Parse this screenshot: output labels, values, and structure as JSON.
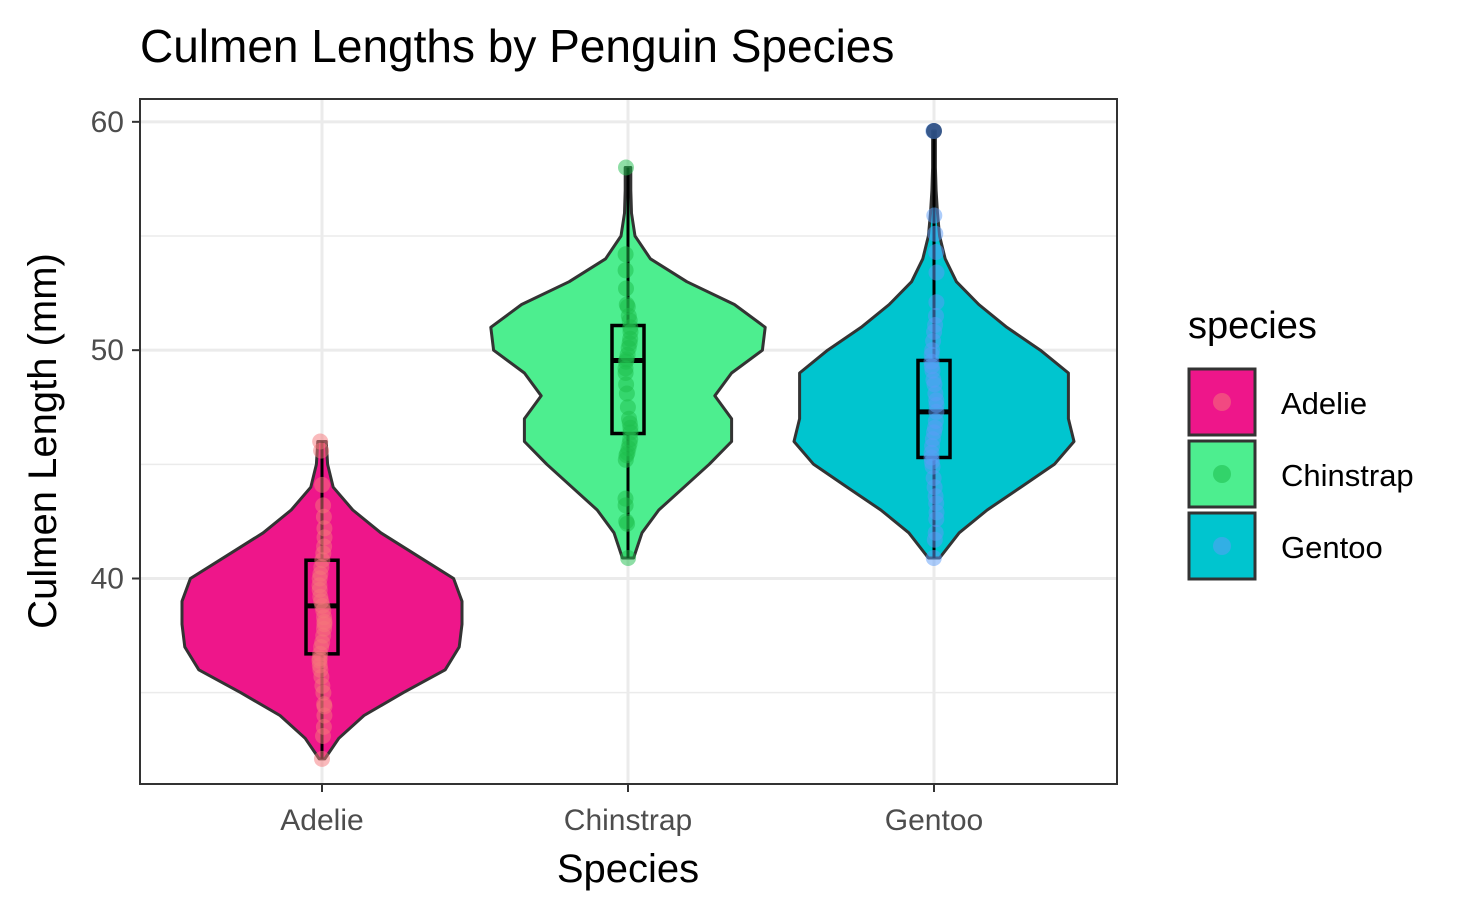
{
  "chart_data": {
    "type": "violin",
    "title": "Culmen Lengths by Penguin Species",
    "xlabel": "Species",
    "ylabel": "Culmen Length (mm)",
    "categories": [
      "Adelie",
      "Chinstrap",
      "Gentoo"
    ],
    "ylim": [
      31,
      61
    ],
    "yticks": [
      40,
      50,
      60
    ],
    "grid": true,
    "legend": {
      "title": "species",
      "position": "right",
      "items": [
        {
          "label": "Adelie",
          "fill": "#EE168A",
          "point": "#F5757A"
        },
        {
          "label": "Chinstrap",
          "fill": "#4DEE8F",
          "point": "#1DBE4C"
        },
        {
          "label": "Gentoo",
          "fill": "#00C5CF",
          "point": "#5B9CF8"
        }
      ]
    },
    "series": [
      {
        "name": "Adelie",
        "fill": "#EE168A",
        "point_color": "#F5757A",
        "min": 32.1,
        "q1": 36.7,
        "median": 38.8,
        "q3": 40.8,
        "max": 46.0,
        "density": [
          [
            32.1,
            0.02
          ],
          [
            33.0,
            0.12
          ],
          [
            34.0,
            0.3
          ],
          [
            35.0,
            0.58
          ],
          [
            36.0,
            0.88
          ],
          [
            37.0,
            0.98
          ],
          [
            38.0,
            1.0
          ],
          [
            39.0,
            1.0
          ],
          [
            40.0,
            0.94
          ],
          [
            41.0,
            0.68
          ],
          [
            42.0,
            0.42
          ],
          [
            43.0,
            0.22
          ],
          [
            44.0,
            0.08
          ],
          [
            45.0,
            0.04
          ],
          [
            46.0,
            0.03
          ]
        ],
        "points": [
          32.1,
          33.1,
          33.5,
          34.0,
          34.4,
          34.5,
          35.0,
          35.3,
          35.7,
          36.0,
          36.2,
          36.4,
          36.5,
          36.7,
          37.0,
          37.2,
          37.5,
          37.8,
          38.0,
          38.1,
          38.3,
          38.6,
          38.8,
          39.0,
          39.2,
          39.5,
          39.7,
          40.0,
          40.2,
          40.5,
          40.8,
          41.1,
          41.4,
          41.8,
          42.2,
          42.7,
          43.2,
          44.1,
          45.6,
          46.0
        ]
      },
      {
        "name": "Chinstrap",
        "fill": "#4DEE8F",
        "point_color": "#1DBE4C",
        "min": 40.9,
        "q1": 46.35,
        "median": 49.55,
        "q3": 51.08,
        "max": 58.0,
        "density": [
          [
            40.9,
            0.04
          ],
          [
            42.0,
            0.1
          ],
          [
            43.0,
            0.22
          ],
          [
            44.0,
            0.4
          ],
          [
            45.0,
            0.58
          ],
          [
            46.0,
            0.74
          ],
          [
            47.0,
            0.74
          ],
          [
            48.0,
            0.62
          ],
          [
            49.0,
            0.74
          ],
          [
            50.0,
            0.96
          ],
          [
            51.0,
            0.98
          ],
          [
            52.0,
            0.76
          ],
          [
            53.0,
            0.42
          ],
          [
            54.0,
            0.16
          ],
          [
            55.0,
            0.05
          ],
          [
            56.0,
            0.025
          ],
          [
            57.0,
            0.02
          ],
          [
            58.0,
            0.02
          ]
        ],
        "points": [
          40.9,
          42.4,
          42.5,
          43.2,
          43.5,
          45.2,
          45.4,
          45.5,
          45.7,
          45.9,
          46.1,
          46.4,
          46.6,
          46.8,
          47.0,
          47.5,
          48.1,
          48.5,
          49.0,
          49.2,
          49.5,
          49.6,
          49.8,
          50.1,
          50.3,
          50.5,
          50.8,
          51.0,
          51.3,
          51.5,
          51.9,
          52.0,
          52.7,
          53.5,
          54.2,
          58.0
        ]
      },
      {
        "name": "Gentoo",
        "fill": "#00C5CF",
        "point_color": "#5B9CF8",
        "min": 40.9,
        "q1": 45.3,
        "median": 47.3,
        "q3": 49.55,
        "max": 59.6,
        "density": [
          [
            40.9,
            0.04
          ],
          [
            42.0,
            0.18
          ],
          [
            43.0,
            0.38
          ],
          [
            44.0,
            0.62
          ],
          [
            45.0,
            0.86
          ],
          [
            46.0,
            1.0
          ],
          [
            47.0,
            0.96
          ],
          [
            48.0,
            0.96
          ],
          [
            49.0,
            0.96
          ],
          [
            50.0,
            0.76
          ],
          [
            51.0,
            0.52
          ],
          [
            52.0,
            0.32
          ],
          [
            53.0,
            0.16
          ],
          [
            54.0,
            0.08
          ],
          [
            55.0,
            0.04
          ],
          [
            56.0,
            0.025
          ],
          [
            57.0,
            0.015
          ],
          [
            58.0,
            0.01
          ],
          [
            59.0,
            0.01
          ],
          [
            59.6,
            0.01
          ]
        ],
        "points": [
          40.9,
          41.7,
          42.0,
          42.6,
          42.9,
          43.3,
          43.6,
          44.0,
          44.4,
          44.9,
          45.1,
          45.3,
          45.5,
          45.8,
          46.1,
          46.4,
          46.6,
          46.9,
          47.3,
          47.6,
          47.8,
          48.1,
          48.5,
          48.7,
          49.1,
          49.3,
          49.5,
          49.8,
          50.0,
          50.4,
          50.8,
          51.1,
          51.5,
          52.1,
          53.4,
          54.3,
          55.1,
          55.9,
          59.6
        ]
      }
    ]
  }
}
